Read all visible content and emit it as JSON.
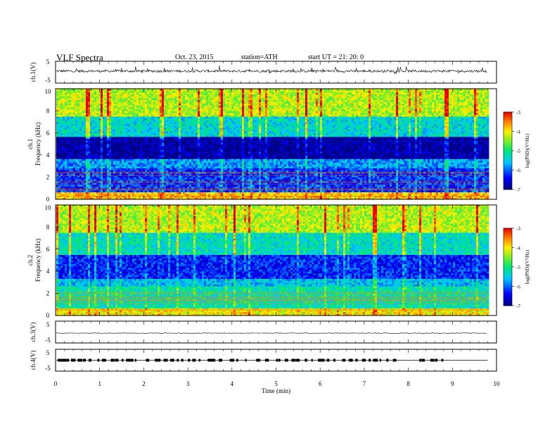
{
  "header": {
    "title": "VLF  Spectra",
    "date": "Oct. 23, 2015",
    "station": "station=ATH",
    "start": "start  UT  =    21: 20: 0"
  },
  "chart_data": [
    {
      "type": "line",
      "panel": "ch1-waveform",
      "ylabel": "ch.1(V)",
      "ylim": [
        -5,
        5
      ],
      "yticks": [
        "5",
        "-5"
      ],
      "xlim": [
        0,
        10
      ],
      "data_end_min": 9.8,
      "baseline_v": 0.5,
      "note_values": "noisy waveform with spikes between about -1 and +2 V"
    },
    {
      "type": "heatmap",
      "panel": "ch1-spectrogram",
      "ylabel_top": "ch.1",
      "ylabel": "Frequency  (kHz)",
      "ylim": [
        0,
        10
      ],
      "yticks": [
        "0",
        "2",
        "4",
        "6",
        "8",
        "10"
      ],
      "xlim": [
        0,
        10
      ],
      "data_end_min": 9.8,
      "colorbar": {
        "label": "log(PSD)(V²/Hz)",
        "range": [
          -7,
          -3
        ],
        "ticks": [
          "-3",
          "-4",
          "-5",
          "-6",
          "-7"
        ]
      },
      "bands": [
        {
          "f_low": 0.0,
          "f_high": 0.6,
          "logpsd": -3.8
        },
        {
          "f_low": 0.6,
          "f_high": 2.8,
          "logpsd": -6.2
        },
        {
          "f_low": 2.8,
          "f_high": 3.6,
          "logpsd": -5.8
        },
        {
          "f_low": 3.6,
          "f_high": 5.7,
          "logpsd": -6.9
        },
        {
          "f_low": 5.7,
          "f_high": 7.5,
          "logpsd": -5.4
        },
        {
          "f_low": 7.5,
          "f_high": 10.0,
          "logpsd": -4.3
        }
      ]
    },
    {
      "type": "heatmap",
      "panel": "ch2-spectrogram",
      "ylabel_top": "ch.2",
      "ylabel": "Frequency  (kHz)",
      "ylim": [
        0,
        10
      ],
      "yticks": [
        "0",
        "2",
        "4",
        "6",
        "8",
        "10"
      ],
      "xlim": [
        0,
        10
      ],
      "data_end_min": 9.8,
      "colorbar": {
        "label": "log(PSD)(V²/Hz)",
        "range": [
          -7,
          -3
        ],
        "ticks": [
          "-3",
          "-4",
          "-5",
          "-6",
          "-7"
        ]
      },
      "bands": [
        {
          "f_low": 0.0,
          "f_high": 0.6,
          "logpsd": -4.0
        },
        {
          "f_low": 0.6,
          "f_high": 2.6,
          "logpsd": -5.2
        },
        {
          "f_low": 2.6,
          "f_high": 3.4,
          "logpsd": -5.6
        },
        {
          "f_low": 3.4,
          "f_high": 5.5,
          "logpsd": -6.3
        },
        {
          "f_low": 5.5,
          "f_high": 7.5,
          "logpsd": -5.3
        },
        {
          "f_low": 7.5,
          "f_high": 10.0,
          "logpsd": -4.3
        }
      ]
    },
    {
      "type": "line",
      "panel": "ch3-waveform",
      "ylabel": "ch.3(V)",
      "ylim": [
        -5,
        5
      ],
      "yticks": [
        "5",
        "-5"
      ],
      "xlim": [
        0,
        10
      ],
      "data_end_min": 9.8,
      "baseline_v": -0.5
    },
    {
      "type": "line",
      "panel": "ch4-waveform",
      "ylabel": "ch.4(V)",
      "ylim": [
        -5,
        5
      ],
      "yticks": [
        "5",
        "-5"
      ],
      "xlim": [
        0,
        10
      ],
      "data_end_min": 9.8,
      "baseline_v": 0.0,
      "burst_times_min": [
        0.05,
        0.1,
        0.15,
        0.2,
        0.25,
        0.35,
        0.5,
        0.62,
        0.75,
        0.95,
        1.05,
        1.25,
        1.35,
        1.5,
        1.6,
        1.7,
        1.8,
        2.05,
        2.25,
        2.3,
        2.45,
        2.6,
        2.75,
        2.85,
        3.0,
        3.1,
        3.25,
        3.45,
        3.55,
        3.7,
        3.95,
        4.1,
        4.3,
        4.55,
        4.75,
        5.0,
        5.05,
        5.2,
        5.35,
        5.45,
        5.65,
        5.8,
        5.95,
        6.05,
        6.15,
        6.3,
        6.5,
        6.65,
        6.8,
        6.95,
        7.1,
        7.2,
        7.35,
        7.5,
        7.65,
        8.25,
        8.3,
        8.5,
        8.6,
        8.75
      ]
    }
  ],
  "xaxis": {
    "label": "Time  (min)",
    "ticks": [
      "0",
      "1",
      "2",
      "3",
      "4",
      "5",
      "6",
      "7",
      "8",
      "9",
      "10"
    ],
    "range": [
      0,
      10
    ]
  }
}
